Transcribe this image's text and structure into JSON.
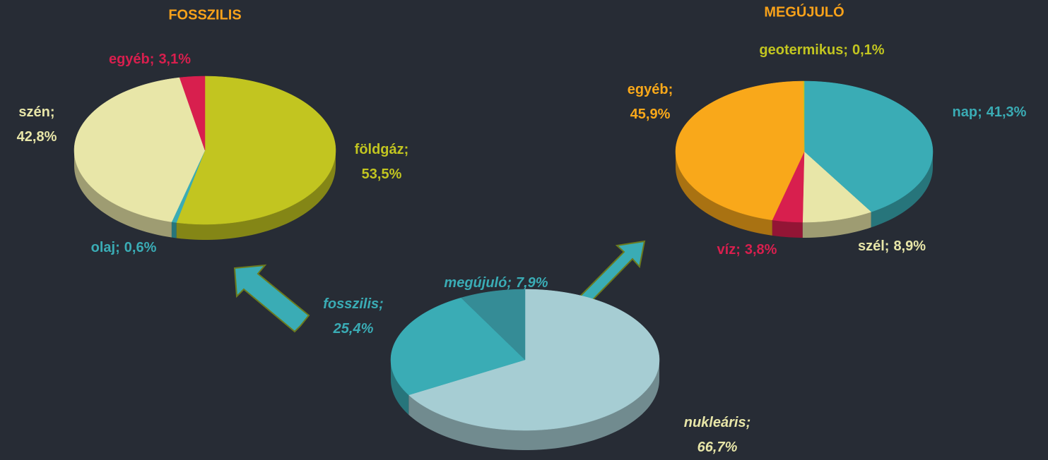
{
  "chart_data": [
    {
      "type": "pie",
      "title": "FOSSZILIS",
      "label_separator": ";",
      "categories": [
        "földgáz",
        "olaj",
        "szén",
        "egyéb"
      ],
      "values": [
        53.5,
        0.6,
        42.8,
        3.1
      ],
      "value_labels": [
        "53,5%",
        "0,6%",
        "42,8%",
        "3,1%"
      ],
      "colors": [
        "#c2c520",
        "#3aacb5",
        "#e8e6a8",
        "#d81f4e"
      ],
      "label_colors": [
        "#c2c520",
        "#3aacb5",
        "#e8e6a8",
        "#d81f4e"
      ]
    },
    {
      "type": "pie",
      "title": "MEGÚJULÓ",
      "label_separator": ";",
      "categories": [
        "nap",
        "szél",
        "víz",
        "egyéb",
        "geotermikus"
      ],
      "values": [
        41.3,
        8.9,
        3.8,
        45.9,
        0.1
      ],
      "value_labels": [
        "41,3%",
        "8,9%",
        "3,8%",
        "45,9%",
        "0,1%"
      ],
      "colors": [
        "#3aacb5",
        "#e8e6a8",
        "#d81f4e",
        "#f9a81a",
        "#c2c520"
      ],
      "label_colors": [
        "#3aacb5",
        "#e8e6a8",
        "#d81f4e",
        "#f9a81a",
        "#c2c520"
      ]
    },
    {
      "type": "pie",
      "label_separator": ";",
      "categories": [
        "nukleáris",
        "fosszilis",
        "megújuló"
      ],
      "values": [
        66.7,
        25.4,
        7.9
      ],
      "value_labels": [
        "66,7%",
        "25,4%",
        "7,9%"
      ],
      "colors": [
        "#a6cdd3",
        "#3aacb5",
        "#358c96"
      ],
      "label_colors": [
        "#e8e6a8",
        "#3aacb5",
        "#3aacb5"
      ]
    }
  ]
}
